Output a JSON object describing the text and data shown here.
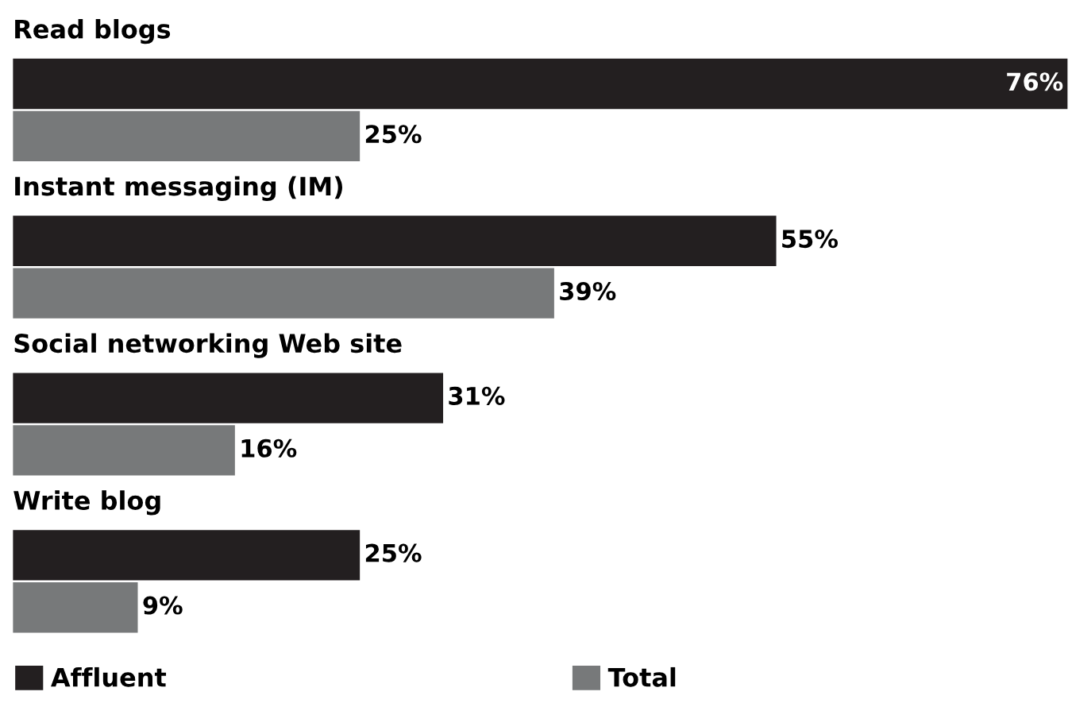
{
  "chart_data": {
    "type": "bar",
    "orientation": "horizontal",
    "categories": [
      "Read blogs",
      "Instant messaging (IM)",
      "Social networking Web site",
      "Write blog"
    ],
    "series": [
      {
        "name": "Affluent",
        "color": "#231f20",
        "values": [
          76,
          55,
          31,
          25
        ],
        "value_labels": [
          "76%",
          "55%",
          "31%",
          "25%"
        ]
      },
      {
        "name": "Total",
        "color": "#77797a",
        "values": [
          25,
          39,
          16,
          9
        ],
        "value_labels": [
          "25%",
          "39%",
          "16%",
          "9%"
        ]
      }
    ],
    "legend": "bottom"
  }
}
